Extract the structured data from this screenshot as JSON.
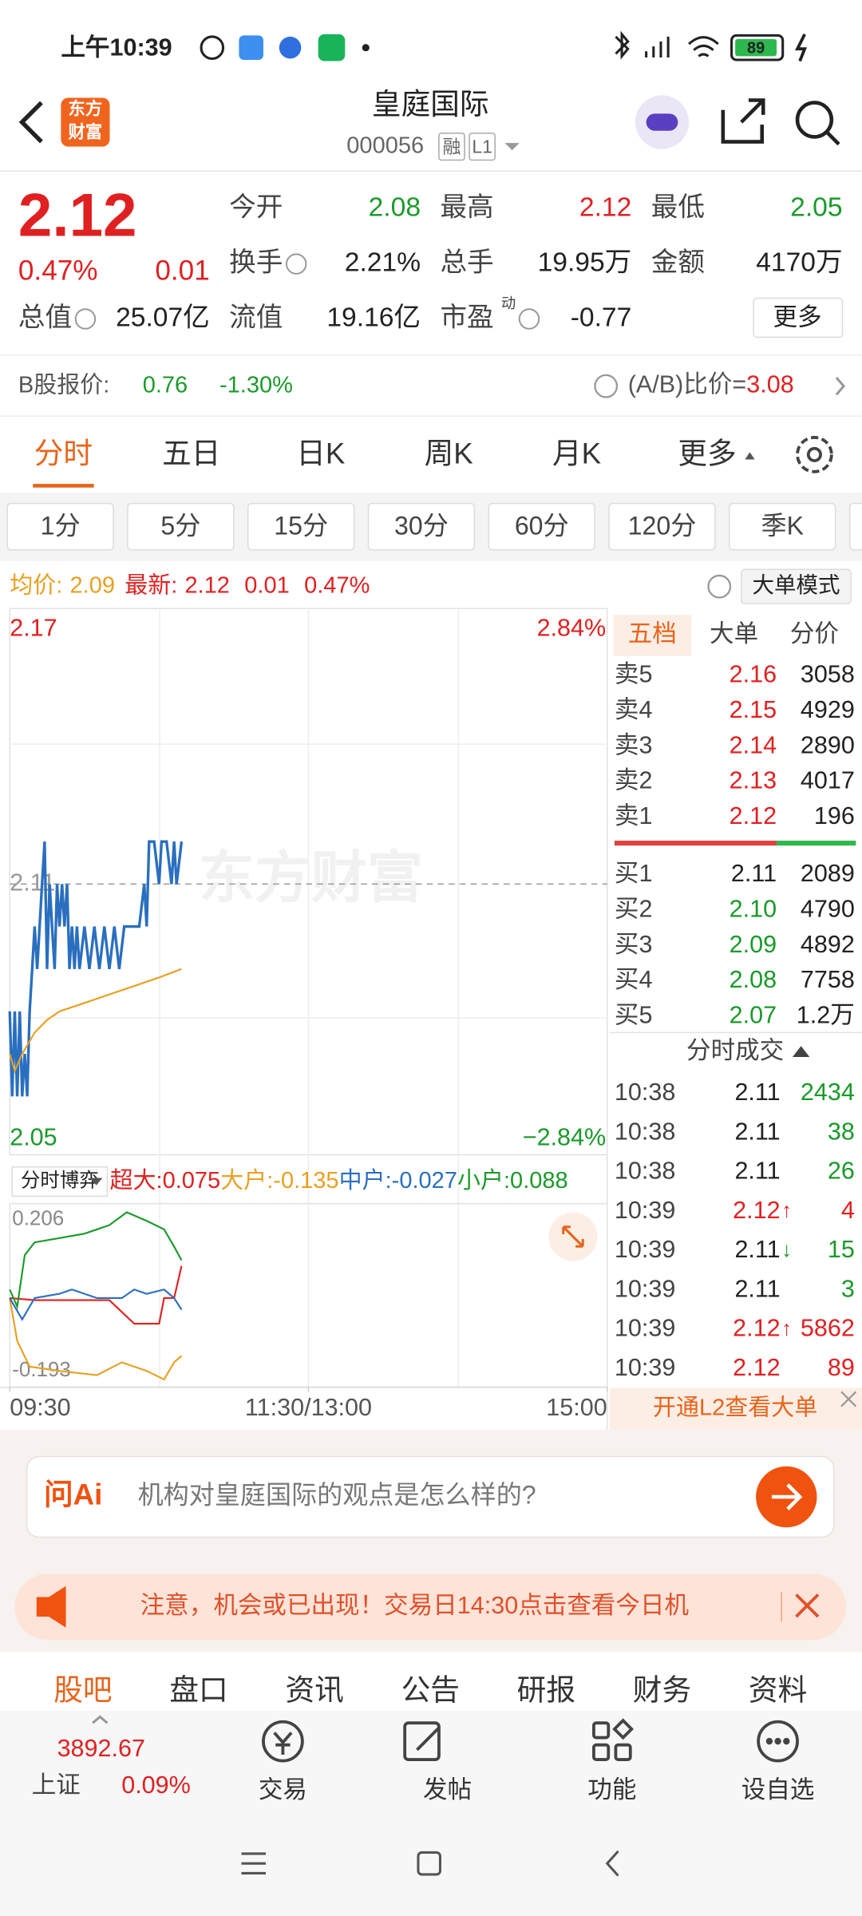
{
  "status_bar": {
    "time": "上午10:39",
    "battery": "89"
  },
  "header": {
    "logo": [
      "东方",
      "财富"
    ],
    "title": "皇庭国际",
    "code": "000056",
    "tags": [
      "融",
      "L1"
    ]
  },
  "quote": {
    "price": "2.12",
    "change_pct": "0.47%",
    "change": "0.01",
    "more": "更多",
    "fields": [
      {
        "label": "今开",
        "value": "2.08",
        "color": "#1a9a2a"
      },
      {
        "label": "最高",
        "value": "2.12",
        "color": "#e02020"
      },
      {
        "label": "最低",
        "value": "2.05",
        "color": "#1a9a2a"
      },
      {
        "label": "换手",
        "value": "2.21%",
        "color": "#222222",
        "info": true
      },
      {
        "label": "总手",
        "value": "19.95万",
        "color": "#222222"
      },
      {
        "label": "金额",
        "value": "4170万",
        "color": "#222222"
      },
      {
        "label": "总值",
        "value": "25.07亿",
        "color": "#222222",
        "info": true
      },
      {
        "label": "流值",
        "value": "19.16亿",
        "color": "#222222"
      },
      {
        "label": "市盈",
        "sup": "动",
        "value": "-0.77",
        "color": "#222222",
        "info": true
      }
    ]
  },
  "b_share": {
    "label": "B股报价:",
    "price": "0.76",
    "pct": "-1.30%",
    "ratio_label": "(A/B)比价=",
    "ratio": "3.08"
  },
  "tabs": [
    {
      "label": "分时",
      "active": true
    },
    {
      "label": "五日"
    },
    {
      "label": "日K"
    },
    {
      "label": "周K"
    },
    {
      "label": "月K"
    },
    {
      "label": "更多"
    }
  ],
  "periods": [
    "1分",
    "5分",
    "15分",
    "30分",
    "60分",
    "120分",
    "季K"
  ],
  "summary": {
    "avg_label": "均价:",
    "avg": "2.09",
    "last_label": "最新:",
    "last": "2.12",
    "change": "0.01",
    "pct": "0.47%",
    "mode": "大单模式"
  },
  "chart_data": [
    {
      "type": "line",
      "watermark": "东方财富",
      "ylim": [
        2.05,
        2.17
      ],
      "yticks": [
        2.05,
        2.11,
        2.17
      ],
      "y2lim": [
        -2.84,
        2.84
      ],
      "y2ticks": [
        {
          "value": -2.84,
          "label": "−2.84%"
        },
        {
          "value": 2.84,
          "label": "2.84%"
        }
      ],
      "xlim": [
        0,
        240
      ],
      "xticks": [
        {
          "value": 0,
          "label": "09:30"
        },
        {
          "value": 120,
          "label": "11:30/13:00"
        },
        {
          "value": 240,
          "label": "15:00"
        }
      ],
      "series": [
        {
          "name": "price",
          "color": "#2a6fbf",
          "x": [
            0,
            1,
            2,
            3,
            4,
            5,
            6,
            7,
            8,
            9,
            10,
            11,
            12,
            13,
            14,
            15,
            16,
            17,
            18,
            19,
            20,
            21,
            22,
            23,
            24,
            25,
            26,
            27,
            28,
            30,
            32,
            34,
            36,
            38,
            40,
            42,
            44,
            46,
            48,
            50,
            52,
            54,
            55,
            56,
            58,
            60,
            61,
            63,
            65,
            66,
            67,
            69
          ],
          "values": [
            2.08,
            2.06,
            2.08,
            2.06,
            2.08,
            2.06,
            2.07,
            2.06,
            2.08,
            2.09,
            2.1,
            2.09,
            2.1,
            2.11,
            2.12,
            2.09,
            2.11,
            2.1,
            2.09,
            2.11,
            2.1,
            2.11,
            2.1,
            2.11,
            2.09,
            2.1,
            2.09,
            2.1,
            2.09,
            2.1,
            2.09,
            2.1,
            2.09,
            2.1,
            2.09,
            2.1,
            2.09,
            2.1,
            2.1,
            2.1,
            2.1,
            2.11,
            2.1,
            2.12,
            2.12,
            2.11,
            2.12,
            2.12,
            2.11,
            2.12,
            2.11,
            2.12
          ]
        },
        {
          "name": "avg",
          "color": "#e8a020",
          "x": [
            0,
            2,
            5,
            10,
            15,
            20,
            30,
            40,
            50,
            60,
            69
          ],
          "values": [
            2.07,
            2.066,
            2.07,
            2.075,
            2.078,
            2.08,
            2.082,
            2.084,
            2.086,
            2.088,
            2.09
          ]
        }
      ]
    },
    {
      "type": "line",
      "selector": "分时博弈",
      "ylim": [
        -0.193,
        0.206
      ],
      "yticks": [
        -0.193,
        0.206
      ],
      "xlim": [
        0,
        240
      ],
      "series": [
        {
          "name": "超大:0.075",
          "color": "#e02020",
          "x": [
            0,
            10,
            20,
            40,
            50,
            60,
            62,
            66,
            69
          ],
          "values": [
            0.0,
            -0.005,
            -0.005,
            -0.005,
            -0.06,
            -0.06,
            0.0,
            0.0,
            0.075
          ]
        },
        {
          "name": "大户:-0.135",
          "color": "#e8a020",
          "x": [
            0,
            3,
            8,
            20,
            35,
            45,
            55,
            62,
            66,
            69
          ],
          "values": [
            0.0,
            -0.1,
            -0.16,
            -0.17,
            -0.18,
            -0.15,
            -0.17,
            -0.19,
            -0.15,
            -0.135
          ]
        },
        {
          "name": "中户:-0.027",
          "color": "#2a6fbf",
          "x": [
            0,
            5,
            10,
            20,
            25,
            35,
            45,
            50,
            55,
            62,
            66,
            69
          ],
          "values": [
            0.0,
            -0.05,
            0.0,
            0.01,
            0.02,
            0.0,
            0.0,
            0.02,
            0.01,
            0.02,
            0.0,
            -0.027
          ]
        },
        {
          "name": "小户:0.088",
          "color": "#1a9a2a",
          "x": [
            0,
            3,
            6,
            10,
            20,
            30,
            40,
            47,
            55,
            62,
            66,
            69
          ],
          "values": [
            0.02,
            -0.02,
            0.1,
            0.13,
            0.14,
            0.15,
            0.17,
            0.2,
            0.18,
            0.16,
            0.12,
            0.088
          ]
        }
      ]
    }
  ],
  "order_book": {
    "tabs": [
      "五档",
      "大单",
      "分价"
    ],
    "asks": [
      {
        "label": "卖5",
        "price": "2.16",
        "volume": "3058"
      },
      {
        "label": "卖4",
        "price": "2.15",
        "volume": "4929"
      },
      {
        "label": "卖3",
        "price": "2.14",
        "volume": "2890"
      },
      {
        "label": "卖2",
        "price": "2.13",
        "volume": "4017"
      },
      {
        "label": "卖1",
        "price": "2.12",
        "volume": "196"
      }
    ],
    "bids": [
      {
        "label": "买1",
        "price": "2.11",
        "volume": "2089",
        "color": "#222222"
      },
      {
        "label": "买2",
        "price": "2.10",
        "volume": "4790",
        "color": "#1a9a2a"
      },
      {
        "label": "买3",
        "price": "2.09",
        "volume": "4892",
        "color": "#1a9a2a"
      },
      {
        "label": "买4",
        "price": "2.08",
        "volume": "7758",
        "color": "#1a9a2a"
      },
      {
        "label": "买5",
        "price": "2.07",
        "volume": "1.2万",
        "color": "#1a9a2a"
      }
    ]
  },
  "trades": {
    "title": "分时成交",
    "promo": "开通L2查看大单",
    "rows": [
      {
        "time": "10:38",
        "price": "2.11",
        "volume": "2434",
        "pcolor": "#222222",
        "vcolor": "#1a9a2a"
      },
      {
        "time": "10:38",
        "price": "2.11",
        "volume": "38",
        "pcolor": "#222222",
        "vcolor": "#1a9a2a"
      },
      {
        "time": "10:38",
        "price": "2.11",
        "volume": "26",
        "pcolor": "#222222",
        "vcolor": "#1a9a2a"
      },
      {
        "time": "10:39",
        "price": "2.12",
        "arrow": "↑",
        "volume": "4",
        "pcolor": "#e02020",
        "vcolor": "#e02020"
      },
      {
        "time": "10:39",
        "price": "2.11",
        "arrow": "↓",
        "volume": "15",
        "pcolor": "#222222",
        "vcolor": "#1a9a2a"
      },
      {
        "time": "10:39",
        "price": "2.11",
        "volume": "3",
        "pcolor": "#222222",
        "vcolor": "#1a9a2a"
      },
      {
        "time": "10:39",
        "price": "2.12",
        "arrow": "↑",
        "volume": "5862",
        "pcolor": "#e02020",
        "vcolor": "#e02020"
      },
      {
        "time": "10:39",
        "price": "2.12",
        "volume": "89",
        "pcolor": "#e02020",
        "vcolor": "#e02020"
      }
    ]
  },
  "ai": {
    "brand": "问Ai",
    "prompt": "机构对皇庭国际的观点是怎么样的?"
  },
  "notice": "注意，机会或已出现！交易日14:30点击查看今日机",
  "bottom_tabs": [
    "股吧",
    "盘口",
    "资讯",
    "公告",
    "研报",
    "财务",
    "资料"
  ],
  "index": {
    "value": "3892.67",
    "name": "上证",
    "pct": "0.09%"
  },
  "dock": [
    "交易",
    "发帖",
    "功能",
    "设自选"
  ]
}
